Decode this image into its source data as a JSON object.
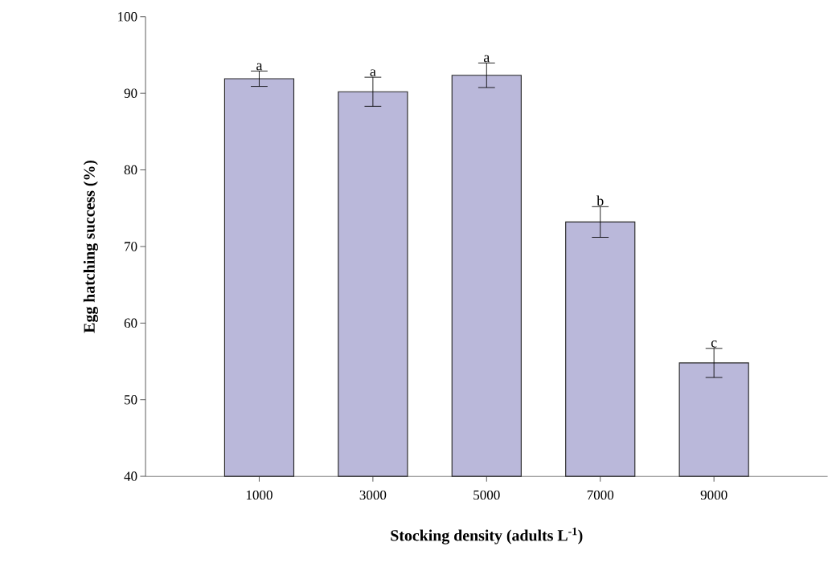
{
  "chart_data": {
    "type": "bar",
    "xlabel": "Stocking density (adults L$^{-1}$)",
    "ylabel": "Egg hatching success (%)",
    "categories": [
      "1000",
      "3000",
      "5000",
      "7000",
      "9000"
    ],
    "values": [
      91.9,
      90.2,
      92.35,
      73.2,
      54.8
    ],
    "errors": [
      1.0,
      1.9,
      1.6,
      2.0,
      1.9
    ],
    "color": "#bab8da",
    "ylim": [
      40,
      100
    ],
    "yticks": [
      40,
      50,
      60,
      70,
      80,
      90,
      100
    ],
    "annotations": [
      {
        "text": "a",
        "x": "1000",
        "y": 92.9
      },
      {
        "text": "a",
        "x": "3000",
        "y": 92.1
      },
      {
        "text": "a",
        "x": "5000",
        "y": 93.95
      },
      {
        "text": "b",
        "x": "7000",
        "y": 75.2
      },
      {
        "text": "c",
        "x": "9000",
        "y": 56.7
      }
    ]
  }
}
